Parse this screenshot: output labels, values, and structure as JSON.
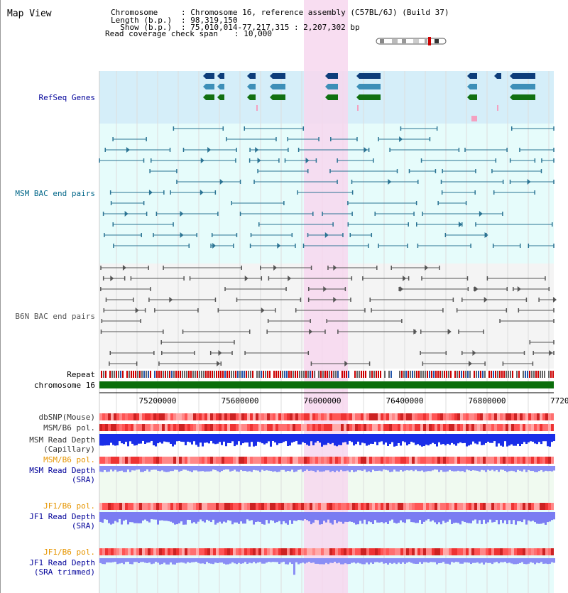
{
  "header": {
    "title": "Map View",
    "rows": [
      {
        "label": "Chromosome",
        "value": ": Chromosome 16, reference assembly (C57BL/6J) (Build 37)"
      },
      {
        "label": "Length (b.p.)",
        "value": ": 98,319,150"
      },
      {
        "label": "  Show (b.p.)",
        "value": ": 75,010,014-77,217,315 : 2,207,302 bp"
      },
      {
        "label": "Read coverage check span",
        "value": ": 10,000"
      }
    ]
  },
  "tracks": {
    "refseq": "RefSeq Genes",
    "msm_bac": "MSM BAC end pairs",
    "b6n_bac": "B6N BAC end pairs",
    "repeat": "Repeat",
    "chromosome": "chromosome 16",
    "dbsnp": "dbSNP(Mouse)",
    "msm_b6_pol": "MSM/B6 pol.",
    "msm_depth_cap_1": "MSM Read Depth",
    "msm_depth_cap_2": "(Capillary)",
    "msm_b6_pol_sra": "MSM/B6 pol.",
    "msm_depth_sra_1": "MSM Read Depth",
    "msm_depth_sra_2": "(SRA)",
    "jf1_b6_pol": "JF1/B6 pol.",
    "jf1_depth_sra_1": "JF1 Read Depth",
    "jf1_depth_sra_2": "(SRA)",
    "jf1_b6_pol_trim": "JF1/B6 pol.",
    "jf1_depth_trim_1": "JF1 Read Depth",
    "jf1_depth_trim_2": "(SRA trimmed)"
  },
  "axis": {
    "ticks": [
      "75200000",
      "75600000",
      "76000000",
      "76400000",
      "76800000",
      "7720"
    ]
  },
  "colors": {
    "refseq_bg": "#d5eef9",
    "bac_bg": "#e6fcfb",
    "highlight": "#f7d7ef",
    "msm_color": "#2a7393",
    "b6n_color": "#555555",
    "chromosome": "#0b6e0b",
    "label_blue": "#000099",
    "label_teal": "#006688",
    "label_orange": "#e69500",
    "label_gray": "#333333"
  }
}
